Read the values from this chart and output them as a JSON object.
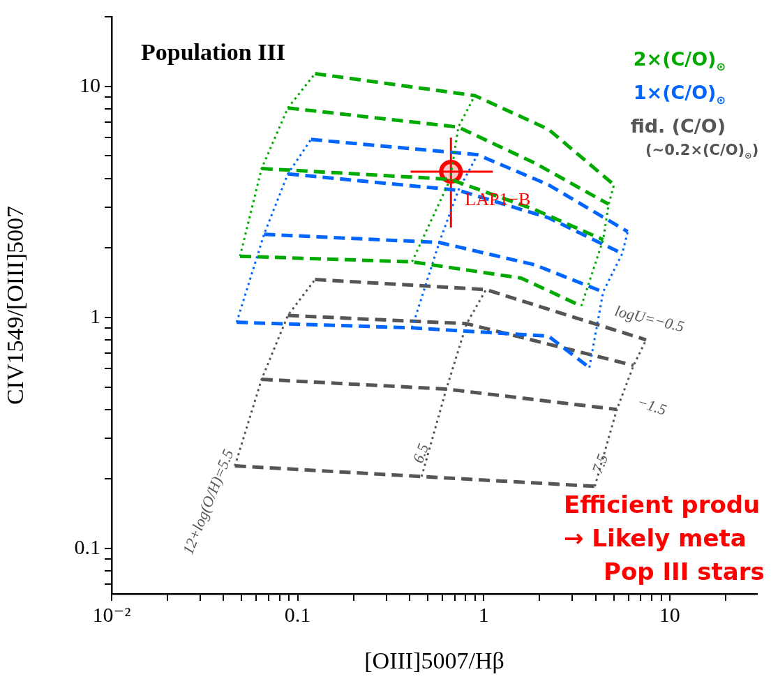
{
  "chart_data": {
    "type": "line",
    "title": "Population III",
    "xlabel": "[OIII]5007/Hβ",
    "ylabel": "CIV1549/[OIII]5007",
    "log": "xy",
    "legend": "top right",
    "xlim": [
      0.01,
      29.5
    ],
    "ylim": [
      0.0637,
      20
    ],
    "xticks": [
      {
        "value": 0.01,
        "label": "10⁻²"
      },
      {
        "value": 0.02,
        "label": null
      },
      {
        "value": 0.03,
        "label": null
      },
      {
        "value": 0.04,
        "label": null
      },
      {
        "value": 0.05,
        "label": null
      },
      {
        "value": 0.06,
        "label": null
      },
      {
        "value": 0.07,
        "label": null
      },
      {
        "value": 0.08,
        "label": null
      },
      {
        "value": 0.09,
        "label": null
      },
      0.1,
      {
        "value": 0.2,
        "label": null
      },
      {
        "value": 0.3,
        "label": null
      },
      {
        "value": 0.4,
        "label": null
      },
      {
        "value": 0.5,
        "label": null
      },
      {
        "value": 0.6,
        "label": null
      },
      {
        "value": 0.7,
        "label": null
      },
      {
        "value": 0.8,
        "label": null
      },
      {
        "value": 0.9,
        "label": null
      },
      1,
      {
        "value": 2,
        "label": null
      },
      {
        "value": 3,
        "label": null
      },
      {
        "value": 4,
        "label": null
      },
      {
        "value": 5,
        "label": null
      },
      {
        "value": 6,
        "label": null
      },
      {
        "value": 7,
        "label": null
      },
      {
        "value": 8,
        "label": null
      },
      {
        "value": 9,
        "label": null
      },
      10,
      {
        "value": 20,
        "label": null
      }
    ],
    "yticks": [
      {
        "value": 0.07,
        "label": null
      },
      {
        "value": 0.08,
        "label": null
      },
      {
        "value": 0.09,
        "label": null
      },
      0.1,
      {
        "value": 0.2,
        "label": null
      },
      {
        "value": 0.3,
        "label": null
      },
      {
        "value": 0.4,
        "label": null
      },
      {
        "value": 0.5,
        "label": null
      },
      {
        "value": 0.6,
        "label": null
      },
      {
        "value": 0.7,
        "label": null
      },
      {
        "value": 0.8,
        "label": null
      },
      {
        "value": 0.9,
        "label": null
      },
      1,
      {
        "value": 2,
        "label": null
      },
      {
        "value": 3,
        "label": null
      },
      {
        "value": 4,
        "label": null
      },
      {
        "value": 5,
        "label": null
      },
      {
        "value": 6,
        "label": null
      },
      {
        "value": 7,
        "label": null
      },
      {
        "value": 8,
        "label": null
      },
      {
        "value": 9,
        "label": null
      },
      10,
      {
        "value": 20,
        "label": null
      }
    ],
    "series": [
      {
        "name": "2×(C/O)$_{⊙}$",
        "color": "#00aa00",
        "line_style": "dashed",
        "marker": "none",
        "x": [
          0.124,
          0.896,
          2.23,
          5.02
        ],
        "values": [
          11.35,
          9.12,
          6.52,
          3.75
        ]
      },
      {
        "color": "#00aa00",
        "line_style": "dashed",
        "marker": "none",
        "x": [
          0.0886,
          0.731,
          1.88,
          4.7
        ],
        "values": [
          8.06,
          6.66,
          4.66,
          3.09
        ]
      },
      {
        "color": "#00aa00",
        "line_style": "dashed",
        "marker": "none",
        "x": [
          0.064,
          0.661,
          1.88,
          4.39
        ],
        "values": [
          4.41,
          3.96,
          2.93,
          2.17
        ]
      },
      {
        "color": "#00aa00",
        "line_style": "dashed",
        "marker": "none",
        "x": [
          0.049,
          0.412,
          1.59,
          3.35
        ],
        "values": [
          1.84,
          1.74,
          1.48,
          1.12
        ]
      },
      {
        "color": "#00aa00",
        "line_style": "dotted",
        "marker": "none",
        "x": [
          0.049,
          0.064,
          0.0886,
          0.124
        ],
        "values": [
          1.84,
          4.41,
          8.06,
          11.35
        ]
      },
      {
        "color": "#00aa00",
        "line_style": "dotted",
        "marker": "none",
        "x": [
          0.412,
          0.661,
          0.731,
          0.896
        ],
        "values": [
          1.74,
          3.96,
          6.66,
          9.12
        ]
      },
      {
        "color": "#00aa00",
        "line_style": "dotted",
        "marker": "none",
        "x": [
          3.35,
          4.39,
          4.7,
          5.02
        ],
        "values": [
          1.12,
          2.17,
          3.09,
          3.75
        ]
      },
      {
        "name": "1×(C/O)$_{⊙}$",
        "color": "#0066ff",
        "line_style": "dashed",
        "marker": "none",
        "x": [
          0.118,
          0.927,
          2.23,
          5.95
        ],
        "values": [
          5.89,
          5.06,
          3.75,
          2.35
        ]
      },
      {
        "color": "#0066ff",
        "line_style": "dashed",
        "marker": "none",
        "x": [
          0.0886,
          0.731,
          2.23,
          5.56
        ],
        "values": [
          4.18,
          3.55,
          2.7,
          1.89
        ]
      },
      {
        "color": "#0066ff",
        "line_style": "dashed",
        "marker": "none",
        "x": [
          0.066,
          0.577,
          1.88,
          4.39
        ],
        "values": [
          2.29,
          2.11,
          1.69,
          1.29
        ]
      },
      {
        "color": "#0066ff",
        "line_style": "dashed",
        "marker": "none",
        "x": [
          0.047,
          0.412,
          2.23,
          3.7
        ],
        "values": [
          0.953,
          0.902,
          0.83,
          0.607
        ]
      },
      {
        "color": "#0066ff",
        "line_style": "dotted",
        "marker": "none",
        "x": [
          0.047,
          0.066,
          0.0886,
          0.118
        ],
        "values": [
          0.953,
          2.29,
          4.18,
          5.89
        ]
      },
      {
        "color": "#0066ff",
        "line_style": "dotted",
        "marker": "none",
        "x": [
          0.412,
          0.577,
          0.731,
          0.927
        ],
        "values": [
          0.902,
          2.11,
          3.55,
          5.06
        ]
      },
      {
        "color": "#0066ff",
        "line_style": "dotted",
        "marker": "none",
        "x": [
          3.7,
          4.39,
          5.56,
          5.95
        ],
        "values": [
          0.607,
          1.29,
          1.89,
          2.35
        ]
      },
      {
        "name": "fid. (C/O)",
        "color": "#555555",
        "line_style": "dashed",
        "marker": "none",
        "x": [
          0.124,
          1.03,
          7.47
        ],
        "values": [
          1.46,
          1.32,
          0.8
        ]
      },
      {
        "color": "#555555",
        "line_style": "dashed",
        "marker": "none",
        "x": [
          0.0886,
          0.81,
          6.4
        ],
        "values": [
          1.02,
          0.94,
          0.62
        ]
      },
      {
        "color": "#555555",
        "line_style": "dashed",
        "marker": "none",
        "x": [
          0.064,
          0.63,
          5.2
        ],
        "values": [
          0.54,
          0.49,
          0.4
        ]
      },
      {
        "color": "#555555",
        "line_style": "dashed",
        "marker": "none",
        "x": [
          0.046,
          0.464,
          3.96
        ],
        "values": [
          0.228,
          0.205,
          0.186
        ]
      },
      {
        "color": "#555555",
        "line_style": "dotted",
        "marker": "none",
        "x": [
          0.046,
          0.064,
          0.0886,
          0.124
        ],
        "values": [
          0.228,
          0.54,
          1.02,
          1.46
        ]
      },
      {
        "color": "#555555",
        "line_style": "dotted",
        "marker": "none",
        "x": [
          0.464,
          0.63,
          0.81,
          1.03
        ],
        "values": [
          0.205,
          0.49,
          0.94,
          1.32
        ]
      },
      {
        "color": "#555555",
        "line_style": "dotted",
        "marker": "none",
        "x": [
          3.96,
          5.2,
          6.4,
          7.47
        ],
        "values": [
          0.186,
          0.4,
          0.62,
          0.8
        ]
      },
      {
        "name": "LAP1−B",
        "type": "scatter",
        "color": "#ff0000",
        "marker": "circle",
        "x": [
          0.667
        ],
        "values": [
          4.27
        ],
        "errors": [
          [
            2.45,
            6.0
          ]
        ],
        "xerrors": [
          [
            0.405,
            1.12
          ]
        ]
      }
    ],
    "annotations": [
      "logU=−0.5",
      "−1.5",
      "12+log(O/H)=5.5",
      "6.5",
      "7.5",
      "(~0.2×(C/O)$_{⊙}$)",
      "Efficient produ",
      "→ Likely meta",
      "Pop III stars"
    ]
  }
}
